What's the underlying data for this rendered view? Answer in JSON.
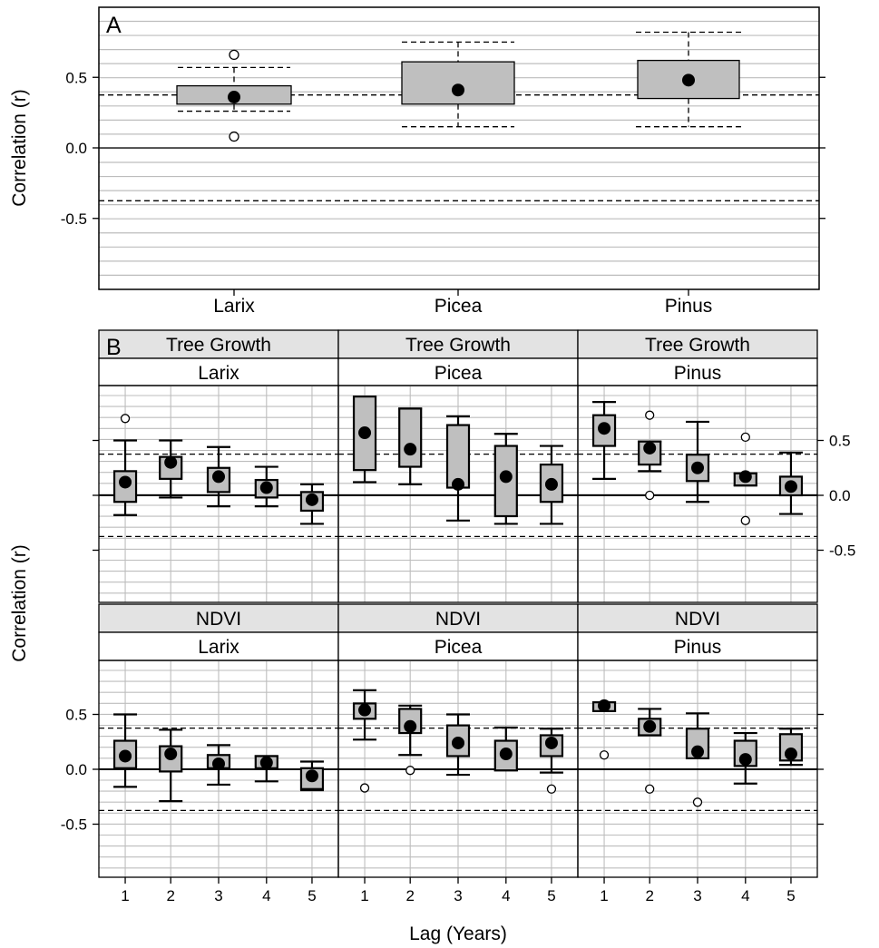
{
  "chart_data": [
    {
      "panel": "A",
      "type": "boxplot",
      "ylabel": "Correlation (r)",
      "ylim": [
        -1.0,
        0.98
      ],
      "yticks": [
        -0.5,
        0.0,
        0.5
      ],
      "ytick_labels": [
        "-0.5",
        "0.0",
        "0.5"
      ],
      "significance_lines": [
        0.375,
        -0.375
      ],
      "grid": true,
      "categories": [
        "Larix",
        "Picea",
        "Pinus"
      ],
      "boxes": [
        {
          "q1": 0.31,
          "q3": 0.44,
          "whisker_low": 0.26,
          "whisker_high": 0.57,
          "mean": 0.36,
          "outliers": [
            0.66,
            0.08
          ]
        },
        {
          "q1": 0.31,
          "q3": 0.61,
          "whisker_low": 0.15,
          "whisker_high": 0.75,
          "mean": 0.41,
          "outliers": []
        },
        {
          "q1": 0.35,
          "q3": 0.62,
          "whisker_low": 0.15,
          "whisker_high": 0.82,
          "mean": 0.48,
          "outliers": []
        }
      ]
    },
    {
      "panel": "B",
      "type": "boxplot-faceted",
      "xlabel": "Lag (Years)",
      "ylabel": "Correlation (r)",
      "ylim": [
        -1.0,
        0.98
      ],
      "yticks": [
        -0.5,
        0.0,
        0.5
      ],
      "ytick_labels": [
        "-0.5",
        "0.0",
        "0.5"
      ],
      "significance_lines": [
        0.375,
        -0.375
      ],
      "grid": true,
      "x_categories": [
        "1",
        "2",
        "3",
        "4",
        "5"
      ],
      "facets": [
        {
          "row": "Tree Growth",
          "col": "Larix",
          "boxes": [
            {
              "q1": -0.06,
              "q3": 0.22,
              "lo": -0.18,
              "hi": 0.5,
              "mean": 0.12,
              "outliers": [
                0.7
              ]
            },
            {
              "q1": 0.15,
              "q3": 0.35,
              "lo": -0.02,
              "hi": 0.5,
              "mean": 0.3,
              "outliers": []
            },
            {
              "q1": 0.03,
              "q3": 0.25,
              "lo": -0.1,
              "hi": 0.44,
              "mean": 0.17,
              "outliers": []
            },
            {
              "q1": -0.02,
              "q3": 0.14,
              "lo": -0.1,
              "hi": 0.26,
              "mean": 0.07,
              "outliers": []
            },
            {
              "q1": -0.14,
              "q3": 0.03,
              "lo": -0.26,
              "hi": 0.1,
              "mean": -0.04,
              "outliers": []
            }
          ]
        },
        {
          "row": "Tree Growth",
          "col": "Picea",
          "boxes": [
            {
              "q1": 0.23,
              "q3": 0.9,
              "lo": 0.12,
              "hi": 0.9,
              "mean": 0.57,
              "outliers": []
            },
            {
              "q1": 0.26,
              "q3": 0.79,
              "lo": 0.1,
              "hi": 0.79,
              "mean": 0.42,
              "outliers": []
            },
            {
              "q1": 0.07,
              "q3": 0.64,
              "lo": -0.23,
              "hi": 0.72,
              "mean": 0.1,
              "outliers": []
            },
            {
              "q1": -0.19,
              "q3": 0.45,
              "lo": -0.26,
              "hi": 0.56,
              "mean": 0.17,
              "outliers": []
            },
            {
              "q1": -0.06,
              "q3": 0.28,
              "lo": -0.26,
              "hi": 0.45,
              "mean": 0.1,
              "outliers": []
            }
          ]
        },
        {
          "row": "Tree Growth",
          "col": "Pinus",
          "boxes": [
            {
              "q1": 0.45,
              "q3": 0.73,
              "lo": 0.15,
              "hi": 0.85,
              "mean": 0.61,
              "outliers": []
            },
            {
              "q1": 0.28,
              "q3": 0.49,
              "lo": 0.22,
              "hi": 0.49,
              "mean": 0.43,
              "outliers": [
                0.73,
                0.0
              ]
            },
            {
              "q1": 0.13,
              "q3": 0.37,
              "lo": -0.06,
              "hi": 0.67,
              "mean": 0.25,
              "outliers": []
            },
            {
              "q1": 0.09,
              "q3": 0.2,
              "lo": 0.09,
              "hi": 0.2,
              "mean": 0.17,
              "outliers": [
                0.53,
                -0.23
              ]
            },
            {
              "q1": 0.0,
              "q3": 0.17,
              "lo": -0.17,
              "hi": 0.39,
              "mean": 0.08,
              "outliers": []
            }
          ]
        },
        {
          "row": "NDVI",
          "col": "Larix",
          "boxes": [
            {
              "q1": 0.01,
              "q3": 0.26,
              "lo": -0.16,
              "hi": 0.5,
              "mean": 0.12,
              "outliers": []
            },
            {
              "q1": -0.02,
              "q3": 0.21,
              "lo": -0.29,
              "hi": 0.36,
              "mean": 0.14,
              "outliers": []
            },
            {
              "q1": 0.01,
              "q3": 0.13,
              "lo": -0.14,
              "hi": 0.22,
              "mean": 0.05,
              "outliers": []
            },
            {
              "q1": 0.01,
              "q3": 0.12,
              "lo": -0.11,
              "hi": 0.12,
              "mean": 0.06,
              "outliers": []
            },
            {
              "q1": -0.18,
              "q3": 0.01,
              "lo": -0.19,
              "hi": 0.07,
              "mean": -0.06,
              "outliers": []
            }
          ]
        },
        {
          "row": "NDVI",
          "col": "Picea",
          "boxes": [
            {
              "q1": 0.46,
              "q3": 0.6,
              "lo": 0.27,
              "hi": 0.72,
              "mean": 0.54,
              "outliers": [
                -0.17
              ]
            },
            {
              "q1": 0.33,
              "q3": 0.55,
              "lo": 0.13,
              "hi": 0.58,
              "mean": 0.39,
              "outliers": [
                -0.01
              ]
            },
            {
              "q1": 0.12,
              "q3": 0.4,
              "lo": -0.05,
              "hi": 0.5,
              "mean": 0.24,
              "outliers": []
            },
            {
              "q1": -0.01,
              "q3": 0.26,
              "lo": -0.01,
              "hi": 0.38,
              "mean": 0.14,
              "outliers": []
            },
            {
              "q1": 0.12,
              "q3": 0.31,
              "lo": -0.03,
              "hi": 0.37,
              "mean": 0.24,
              "outliers": [
                -0.18
              ]
            }
          ]
        },
        {
          "row": "NDVI",
          "col": "Pinus",
          "boxes": [
            {
              "q1": 0.53,
              "q3": 0.61,
              "lo": 0.53,
              "hi": 0.61,
              "mean": 0.58,
              "outliers": [
                0.13
              ]
            },
            {
              "q1": 0.31,
              "q3": 0.46,
              "lo": 0.31,
              "hi": 0.55,
              "mean": 0.39,
              "outliers": [
                -0.18
              ]
            },
            {
              "q1": 0.1,
              "q3": 0.37,
              "lo": 0.1,
              "hi": 0.51,
              "mean": 0.16,
              "outliers": [
                -0.3
              ]
            },
            {
              "q1": 0.03,
              "q3": 0.26,
              "lo": -0.13,
              "hi": 0.33,
              "mean": 0.09,
              "outliers": []
            },
            {
              "q1": 0.08,
              "q3": 0.32,
              "lo": 0.04,
              "hi": 0.37,
              "mean": 0.14,
              "outliers": []
            }
          ]
        }
      ]
    }
  ]
}
